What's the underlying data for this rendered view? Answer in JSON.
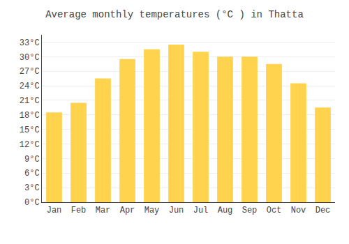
{
  "chart_data": {
    "type": "bar",
    "title": "Average monthly temperatures (°C ) in Thatta",
    "categories": [
      "Jan",
      "Feb",
      "Mar",
      "Apr",
      "May",
      "Jun",
      "Jul",
      "Aug",
      "Sep",
      "Oct",
      "Nov",
      "Dec"
    ],
    "values": [
      18.5,
      20.5,
      25.5,
      29.5,
      31.5,
      32.5,
      31.0,
      30.0,
      30.0,
      28.5,
      24.5,
      19.5
    ],
    "color": "#FFD34E",
    "ylim": [
      0,
      34.5
    ],
    "yticks": [
      {
        "value": 0,
        "label": "0°C"
      },
      {
        "value": 3,
        "label": "3°C"
      },
      {
        "value": 6,
        "label": "6°C"
      },
      {
        "value": 9,
        "label": "9°C"
      },
      {
        "value": 12,
        "label": "12°C"
      },
      {
        "value": 15,
        "label": "15°C"
      },
      {
        "value": 18,
        "label": "18°C"
      },
      {
        "value": 21,
        "label": "21°C"
      },
      {
        "value": 24,
        "label": "24°C"
      },
      {
        "value": 27,
        "label": "27°C"
      },
      {
        "value": 30,
        "label": "30°C"
      },
      {
        "value": 33,
        "label": "33°C"
      }
    ],
    "grid": true
  }
}
